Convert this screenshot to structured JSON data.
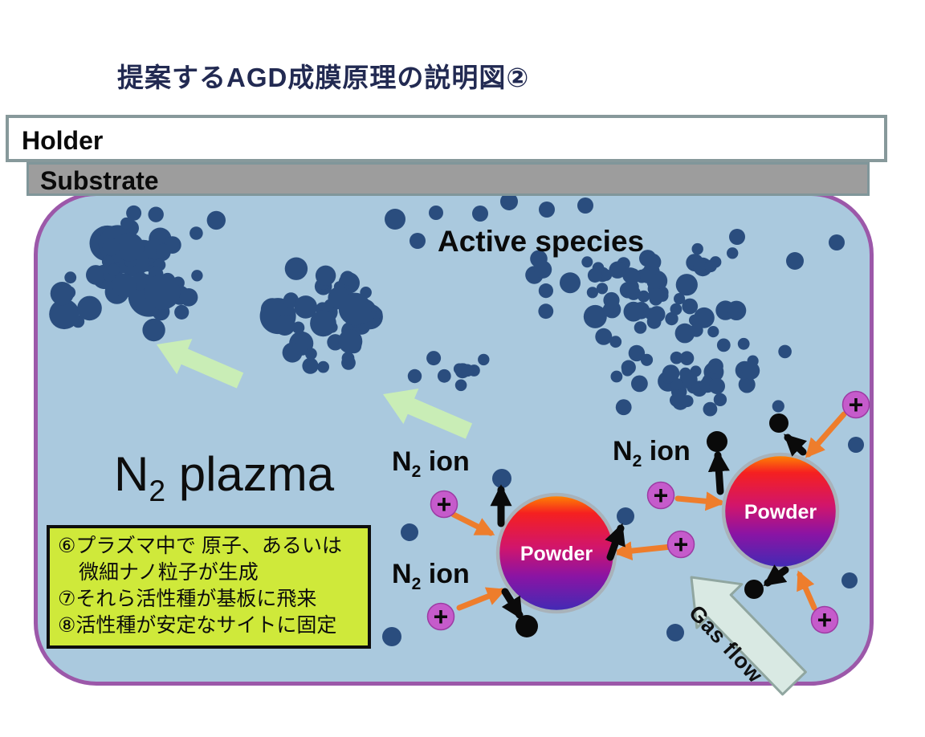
{
  "title": "提案するAGD成膜原理の説明図②",
  "holder": {
    "label": "Holder"
  },
  "substrate": {
    "label": "Substrate"
  },
  "chamber": {
    "active_species_label": "Active species",
    "plasma_label": {
      "n": "N",
      "sub": "2",
      "rest": " plazma"
    },
    "n2_ion_label": {
      "n": "N",
      "sub": "2",
      "rest": " ion"
    },
    "powder_label": "Powder",
    "ion_symbol": "+",
    "gas_flow_label": "Gas flow"
  },
  "note_box": {
    "lines": [
      "⑥プラズマ中で 原子、あるいは",
      "微細ナノ粒子が生成",
      "⑦それら活性種が基板に飛来",
      "⑧活性種が安定なサイトに固定"
    ]
  },
  "colors": {
    "title_text": "#222a52",
    "chamber_fill": "#aac9de",
    "chamber_border": "#9c58a9",
    "particle_dot": "#2a4d7e",
    "black_dot": "#0a0a0a",
    "orange_arrow": "#ee7d2c",
    "black_arrow": "#0a0a0a",
    "green_arrow": "#c9edb6",
    "gas_arrow_fill": "#d9e9e3",
    "gas_arrow_stroke": "#90a6a0",
    "ion_fill": "#c55bcb",
    "ion_stroke": "#9c3ba3",
    "note_box_fill": "#cfe93a",
    "powder_ring": "#a8b2ba",
    "powder_gradient": [
      "#ff8c00",
      "#f52020",
      "#d1156c",
      "#8a14a4",
      "#3f2bb5"
    ]
  }
}
